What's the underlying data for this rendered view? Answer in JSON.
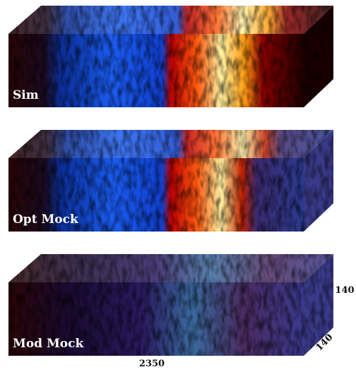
{
  "panels": [
    {
      "label": "Sim"
    },
    {
      "label": "Opt Mock"
    },
    {
      "label": "Mod Mock"
    }
  ],
  "dimensions": {
    "length": "2350",
    "height": "140",
    "depth": "140"
  }
}
